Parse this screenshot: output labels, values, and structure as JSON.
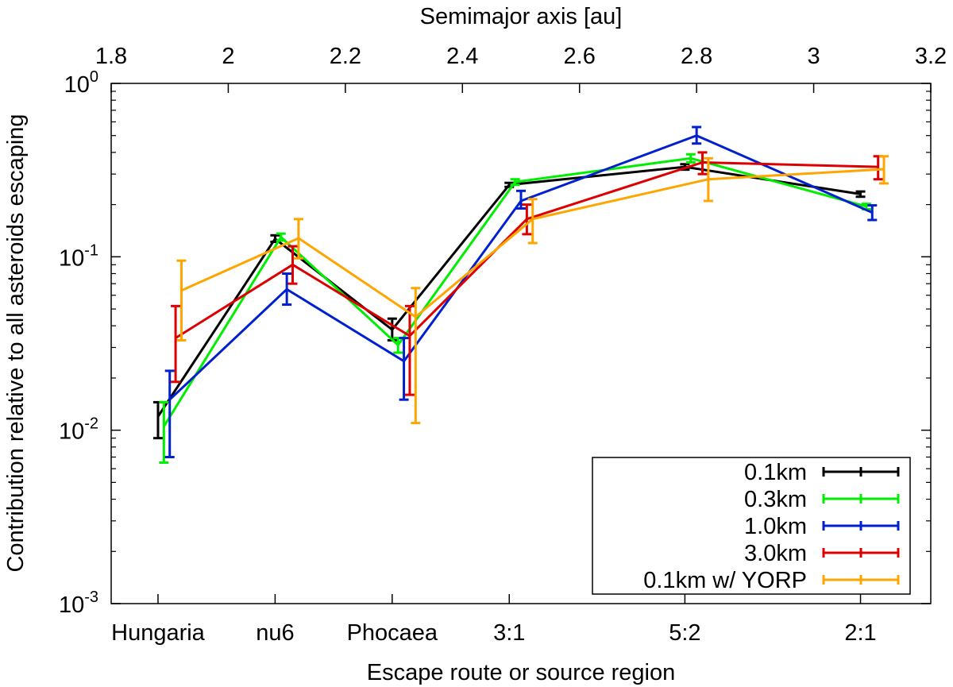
{
  "chart_data": {
    "type": "line",
    "log_y": true,
    "top_axis": {
      "title": "Semimajor axis [au]",
      "range": [
        1.8,
        3.2
      ],
      "ticks": [
        1.8,
        2.0,
        2.2,
        2.4,
        2.6,
        2.8,
        3.0,
        3.2
      ],
      "tick_labels": [
        "1.8",
        "2",
        "2.2",
        "2.4",
        "2.6",
        "2.8",
        "3",
        "3.2"
      ]
    },
    "bottom_axis": {
      "title": "Escape route or source region",
      "categories": [
        {
          "label": "Hungaria",
          "a": 1.88
        },
        {
          "label": "nu6",
          "a": 2.08
        },
        {
          "label": "Phocaea",
          "a": 2.28
        },
        {
          "label": "3:1",
          "a": 2.48
        },
        {
          "label": "5:2",
          "a": 2.78
        },
        {
          "label": "2:1",
          "a": 3.08
        }
      ]
    },
    "y_axis": {
      "title": "Contribution relative to all asteroids escaping",
      "range": [
        0.001,
        1
      ],
      "ticks": [
        {
          "value": 1,
          "base": "10",
          "exp": "0"
        },
        {
          "value": 0.1,
          "base": "10",
          "exp": "-1"
        },
        {
          "value": 0.01,
          "base": "10",
          "exp": "-2"
        },
        {
          "value": 0.001,
          "base": "10",
          "exp": "-3"
        }
      ]
    },
    "legend": {
      "position": "bottom-right"
    },
    "series": [
      {
        "name": "0.1km",
        "color": "#000000",
        "x": [
          1.88,
          2.08,
          2.28,
          2.48,
          2.78,
          3.08
        ],
        "y": [
          0.012,
          0.127,
          0.038,
          0.26,
          0.33,
          0.23
        ],
        "err_low": [
          0.009,
          0.122,
          0.033,
          0.253,
          0.318,
          0.222
        ],
        "err_high": [
          0.0145,
          0.133,
          0.044,
          0.267,
          0.342,
          0.238
        ]
      },
      {
        "name": "0.3km",
        "color": "#00ee00",
        "x": [
          1.89,
          2.09,
          2.29,
          2.49,
          2.79,
          3.09
        ],
        "y": [
          0.0105,
          0.13,
          0.031,
          0.27,
          0.37,
          0.195
        ],
        "err_low": [
          0.0065,
          0.124,
          0.028,
          0.26,
          0.35,
          0.188
        ],
        "err_high": [
          0.0145,
          0.136,
          0.034,
          0.28,
          0.39,
          0.202
        ]
      },
      {
        "name": "1.0km",
        "color": "#0020d0",
        "x": [
          1.9,
          2.1,
          2.3,
          2.5,
          2.8,
          3.1
        ],
        "y": [
          0.015,
          0.065,
          0.025,
          0.21,
          0.5,
          0.18
        ],
        "err_low": [
          0.007,
          0.053,
          0.015,
          0.19,
          0.45,
          0.163
        ],
        "err_high": [
          0.022,
          0.08,
          0.034,
          0.24,
          0.56,
          0.198
        ]
      },
      {
        "name": "3.0km",
        "color": "#dd0000",
        "x": [
          1.91,
          2.11,
          2.31,
          2.51,
          2.81,
          3.11
        ],
        "y": [
          0.034,
          0.09,
          0.035,
          0.165,
          0.35,
          0.33
        ],
        "err_low": [
          0.019,
          0.07,
          0.016,
          0.135,
          0.3,
          0.28
        ],
        "err_high": [
          0.052,
          0.115,
          0.052,
          0.2,
          0.4,
          0.38
        ]
      },
      {
        "name": "0.1km w/ YORP",
        "color": "#ffa500",
        "x": [
          1.92,
          2.12,
          2.32,
          2.52,
          2.82,
          3.12
        ],
        "y": [
          0.064,
          0.128,
          0.045,
          0.165,
          0.28,
          0.32
        ],
        "err_low": [
          0.033,
          0.098,
          0.011,
          0.12,
          0.21,
          0.265
        ],
        "err_high": [
          0.095,
          0.165,
          0.066,
          0.215,
          0.37,
          0.38
        ]
      }
    ]
  }
}
